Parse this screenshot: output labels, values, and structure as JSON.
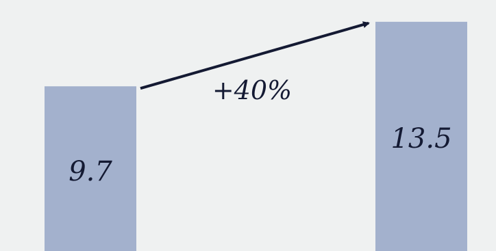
{
  "chart_data": {
    "type": "bar",
    "categories": [
      "",
      ""
    ],
    "values": [
      9.7,
      13.5
    ],
    "value_labels": [
      "9.7",
      "13.5"
    ],
    "change_label": "+40%",
    "title": "",
    "xlabel": "",
    "ylabel": "",
    "ylim": [
      0,
      14.3
    ],
    "grid": false,
    "legend": "none",
    "bar_color": "#a3b1cd",
    "arrow_color": "#141a33"
  }
}
